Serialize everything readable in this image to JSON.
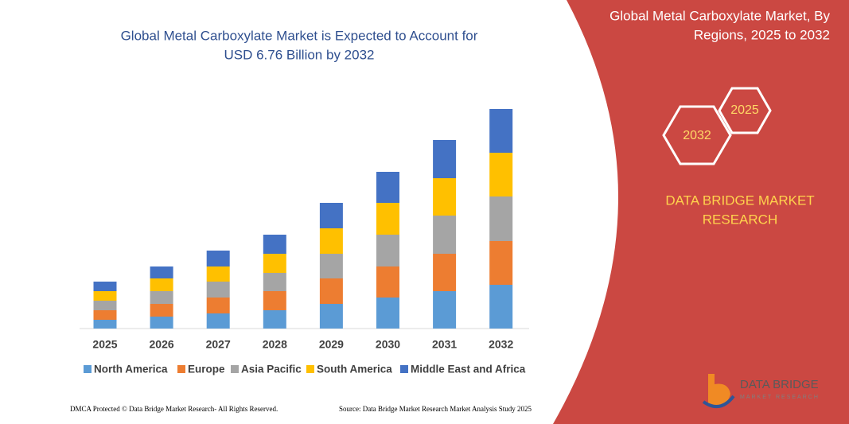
{
  "chart_data": {
    "type": "stacked_bar",
    "title": [
      "Global Metal Carboxylate Market is Expected to Account for",
      "USD 6.76 Billion by 2032"
    ],
    "categories": [
      "2025",
      "2026",
      "2027",
      "2028",
      "2029",
      "2030",
      "2031",
      "2032"
    ],
    "series": [
      {
        "name": "North America",
        "color": "#5b9bd5",
        "values": [
          11,
          15,
          19,
          23,
          31,
          39,
          47,
          55
        ]
      },
      {
        "name": "Europe",
        "color": "#ed7d31",
        "values": [
          12,
          16,
          20,
          24,
          32,
          39,
          47,
          55
        ]
      },
      {
        "name": "Asia Pacific",
        "color": "#a5a5a5",
        "values": [
          12,
          16,
          20,
          23,
          31,
          40,
          48,
          56
        ]
      },
      {
        "name": "South America",
        "color": "#ffc000",
        "values": [
          12,
          16,
          19,
          24,
          32,
          40,
          47,
          55
        ]
      },
      {
        "name": "Middle East and Africa",
        "color": "#4472c4",
        "values": [
          12,
          15,
          20,
          24,
          32,
          39,
          48,
          55
        ]
      }
    ]
  },
  "panel": {
    "title": [
      "Global Metal Carboxylate Market, By",
      "Regions, 2025 to 2032"
    ],
    "hexagons": [
      "2025",
      "2032"
    ],
    "brand": [
      "DATA BRIDGE MARKET",
      "RESEARCH"
    ]
  },
  "logo": {
    "name": "DATA BRIDGE",
    "tagline": "MARKET RESEARCH"
  },
  "footer": {
    "left": "DMCA Protected © Data Bridge Market Research-  All Rights Reserved.",
    "right": "Source: Data Bridge Market Research  Market Analysis Study 2025"
  }
}
